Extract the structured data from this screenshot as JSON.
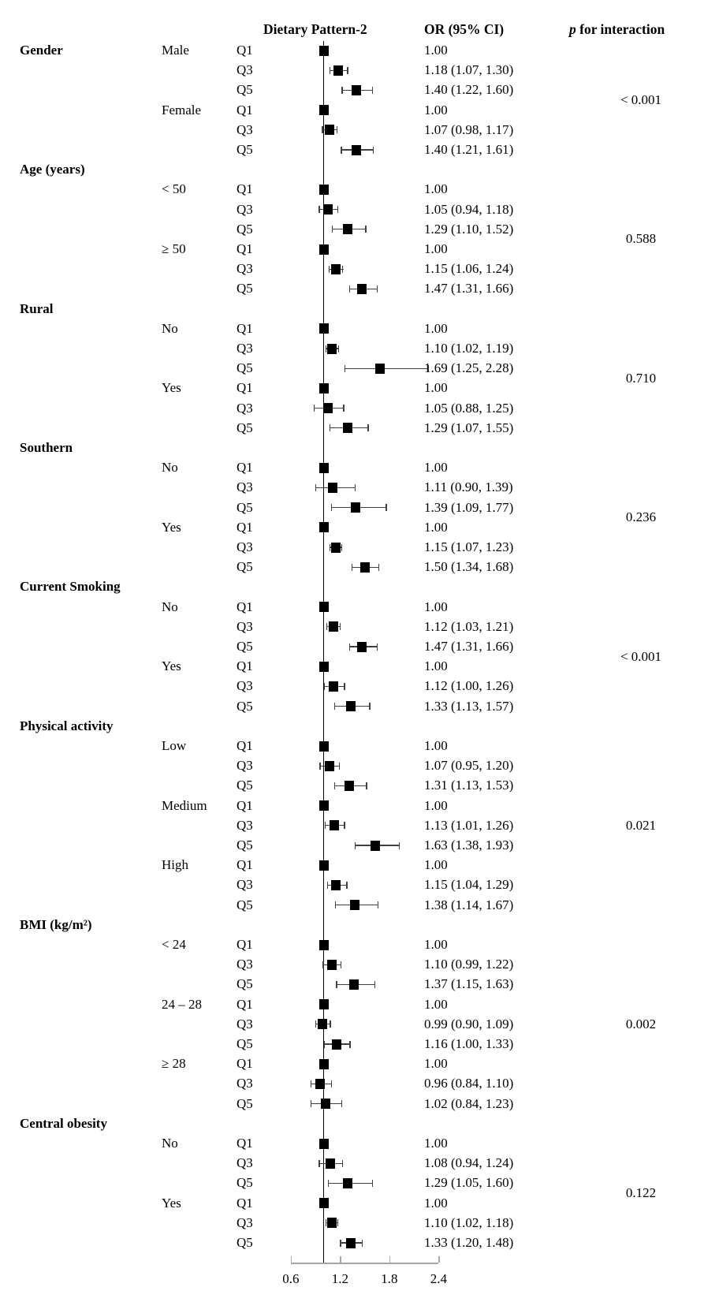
{
  "header": {
    "plot_col": "Dietary Pattern-2",
    "or_col": "OR (95% CI)",
    "p_col_italic": "p",
    "p_col_rest": " for interaction"
  },
  "axis": {
    "tick_labels": [
      "0.6",
      "1.2",
      "1.8",
      "2.4"
    ],
    "tick_values": [
      0.6,
      1.2,
      1.8,
      2.4
    ],
    "reference_value": 1.0
  },
  "colors": {
    "marker": "#000000",
    "ci_line": "#404040",
    "reference_line": "#000000",
    "axis_line": "#a6a6a6",
    "text": "#000000",
    "background": "#ffffff"
  },
  "chart_data": {
    "type": "scatter",
    "subtype": "forest-plot",
    "title": "Dietary Pattern-2",
    "xlabel": "",
    "xlim": [
      0.55,
      2.45
    ],
    "x_ticks": [
      0.6,
      1.2,
      1.8,
      2.4
    ],
    "legend": "none",
    "grid": false,
    "groups": [
      {
        "name": "Gender",
        "label_own_row": false,
        "p": "< 0.001",
        "subgroups": [
          {
            "name": "Male",
            "rows": [
              {
                "q": "Q1",
                "or": 1.0,
                "lo": null,
                "hi": null,
                "label": "1.00"
              },
              {
                "q": "Q3",
                "or": 1.18,
                "lo": 1.07,
                "hi": 1.3,
                "label": "1.18 (1.07, 1.30)"
              },
              {
                "q": "Q5",
                "or": 1.4,
                "lo": 1.22,
                "hi": 1.6,
                "label": "1.40 (1.22, 1.60)"
              }
            ]
          },
          {
            "name": "Female",
            "rows": [
              {
                "q": "Q1",
                "or": 1.0,
                "lo": null,
                "hi": null,
                "label": "1.00"
              },
              {
                "q": "Q3",
                "or": 1.07,
                "lo": 0.98,
                "hi": 1.17,
                "label": "1.07 (0.98, 1.17)"
              },
              {
                "q": "Q5",
                "or": 1.4,
                "lo": 1.21,
                "hi": 1.61,
                "label": "1.40 (1.21, 1.61)"
              }
            ]
          }
        ]
      },
      {
        "name": "Age (years)",
        "label_own_row": true,
        "p": "0.588",
        "subgroups": [
          {
            "name": "< 50",
            "rows": [
              {
                "q": "Q1",
                "or": 1.0,
                "lo": null,
                "hi": null,
                "label": "1.00"
              },
              {
                "q": "Q3",
                "or": 1.05,
                "lo": 0.94,
                "hi": 1.18,
                "label": "1.05 (0.94, 1.18)"
              },
              {
                "q": "Q5",
                "or": 1.29,
                "lo": 1.1,
                "hi": 1.52,
                "label": "1.29 (1.10, 1.52)"
              }
            ]
          },
          {
            "name": "≥ 50",
            "rows": [
              {
                "q": "Q1",
                "or": 1.0,
                "lo": null,
                "hi": null,
                "label": "1.00"
              },
              {
                "q": "Q3",
                "or": 1.15,
                "lo": 1.06,
                "hi": 1.24,
                "label": "1.15 (1.06, 1.24)"
              },
              {
                "q": "Q5",
                "or": 1.47,
                "lo": 1.31,
                "hi": 1.66,
                "label": "1.47 (1.31, 1.66)"
              }
            ]
          }
        ]
      },
      {
        "name": "Rural",
        "label_own_row": true,
        "p": "0.710",
        "subgroups": [
          {
            "name": "No",
            "rows": [
              {
                "q": "Q1",
                "or": 1.0,
                "lo": null,
                "hi": null,
                "label": "1.00"
              },
              {
                "q": "Q3",
                "or": 1.1,
                "lo": 1.02,
                "hi": 1.19,
                "label": "1.10 (1.02, 1.19)"
              },
              {
                "q": "Q5",
                "or": 1.69,
                "lo": 1.25,
                "hi": 2.28,
                "label": "1.69 (1.25, 2.28)"
              }
            ]
          },
          {
            "name": "Yes",
            "rows": [
              {
                "q": "Q1",
                "or": 1.0,
                "lo": null,
                "hi": null,
                "label": "1.00"
              },
              {
                "q": "Q3",
                "or": 1.05,
                "lo": 0.88,
                "hi": 1.25,
                "label": "1.05 (0.88, 1.25)"
              },
              {
                "q": "Q5",
                "or": 1.29,
                "lo": 1.07,
                "hi": 1.55,
                "label": "1.29 (1.07, 1.55)"
              }
            ]
          }
        ]
      },
      {
        "name": "Southern",
        "label_own_row": true,
        "p": "0.236",
        "subgroups": [
          {
            "name": "No",
            "rows": [
              {
                "q": "Q1",
                "or": 1.0,
                "lo": null,
                "hi": null,
                "label": "1.00"
              },
              {
                "q": "Q3",
                "or": 1.11,
                "lo": 0.9,
                "hi": 1.39,
                "label": "1.11 (0.90, 1.39)"
              },
              {
                "q": "Q5",
                "or": 1.39,
                "lo": 1.09,
                "hi": 1.77,
                "label": "1.39 (1.09, 1.77)"
              }
            ]
          },
          {
            "name": "Yes",
            "rows": [
              {
                "q": "Q1",
                "or": 1.0,
                "lo": null,
                "hi": null,
                "label": "1.00"
              },
              {
                "q": "Q3",
                "or": 1.15,
                "lo": 1.07,
                "hi": 1.23,
                "label": "1.15 (1.07, 1.23)"
              },
              {
                "q": "Q5",
                "or": 1.5,
                "lo": 1.34,
                "hi": 1.68,
                "label": "1.50 (1.34, 1.68)"
              }
            ]
          }
        ]
      },
      {
        "name": "Current Smoking",
        "label_own_row": true,
        "p": "< 0.001",
        "subgroups": [
          {
            "name": "No",
            "rows": [
              {
                "q": "Q1",
                "or": 1.0,
                "lo": null,
                "hi": null,
                "label": "1.00"
              },
              {
                "q": "Q3",
                "or": 1.12,
                "lo": 1.03,
                "hi": 1.21,
                "label": "1.12 (1.03, 1.21)"
              },
              {
                "q": "Q5",
                "or": 1.47,
                "lo": 1.31,
                "hi": 1.66,
                "label": "1.47 (1.31, 1.66)"
              }
            ]
          },
          {
            "name": "Yes",
            "rows": [
              {
                "q": "Q1",
                "or": 1.0,
                "lo": null,
                "hi": null,
                "label": "1.00"
              },
              {
                "q": "Q3",
                "or": 1.12,
                "lo": 1.0,
                "hi": 1.26,
                "label": "1.12 (1.00, 1.26)"
              },
              {
                "q": "Q5",
                "or": 1.33,
                "lo": 1.13,
                "hi": 1.57,
                "label": "1.33 (1.13, 1.57)"
              }
            ]
          }
        ]
      },
      {
        "name": "Physical activity",
        "label_own_row": true,
        "p": "0.021",
        "subgroups": [
          {
            "name": "Low",
            "rows": [
              {
                "q": "Q1",
                "or": 1.0,
                "lo": null,
                "hi": null,
                "label": "1.00"
              },
              {
                "q": "Q3",
                "or": 1.07,
                "lo": 0.95,
                "hi": 1.2,
                "label": "1.07 (0.95, 1.20)"
              },
              {
                "q": "Q5",
                "or": 1.31,
                "lo": 1.13,
                "hi": 1.53,
                "label": "1.31 (1.13, 1.53)"
              }
            ]
          },
          {
            "name": "Medium",
            "rows": [
              {
                "q": "Q1",
                "or": 1.0,
                "lo": null,
                "hi": null,
                "label": "1.00"
              },
              {
                "q": "Q3",
                "or": 1.13,
                "lo": 1.01,
                "hi": 1.26,
                "label": "1.13 (1.01, 1.26)"
              },
              {
                "q": "Q5",
                "or": 1.63,
                "lo": 1.38,
                "hi": 1.93,
                "label": "1.63 (1.38, 1.93)"
              }
            ]
          },
          {
            "name": "High",
            "rows": [
              {
                "q": "Q1",
                "or": 1.0,
                "lo": null,
                "hi": null,
                "label": "1.00"
              },
              {
                "q": "Q3",
                "or": 1.15,
                "lo": 1.04,
                "hi": 1.29,
                "label": "1.15 (1.04, 1.29)"
              },
              {
                "q": "Q5",
                "or": 1.38,
                "lo": 1.14,
                "hi": 1.67,
                "label": "1.38 (1.14, 1.67)"
              }
            ]
          }
        ]
      },
      {
        "name": "BMI (kg/m²)",
        "label_own_row": true,
        "p": "0.002",
        "subgroups": [
          {
            "name": "< 24",
            "rows": [
              {
                "q": "Q1",
                "or": 1.0,
                "lo": null,
                "hi": null,
                "label": "1.00"
              },
              {
                "q": "Q3",
                "or": 1.1,
                "lo": 0.99,
                "hi": 1.22,
                "label": "1.10 (0.99, 1.22)"
              },
              {
                "q": "Q5",
                "or": 1.37,
                "lo": 1.15,
                "hi": 1.63,
                "label": "1.37 (1.15, 1.63)"
              }
            ]
          },
          {
            "name": "24 – 28",
            "rows": [
              {
                "q": "Q1",
                "or": 1.0,
                "lo": null,
                "hi": null,
                "label": "1.00"
              },
              {
                "q": "Q3",
                "or": 0.99,
                "lo": 0.9,
                "hi": 1.09,
                "label": "0.99 (0.90, 1.09)"
              },
              {
                "q": "Q5",
                "or": 1.16,
                "lo": 1.0,
                "hi": 1.33,
                "label": "1.16 (1.00, 1.33)"
              }
            ]
          },
          {
            "name": "≥ 28",
            "rows": [
              {
                "q": "Q1",
                "or": 1.0,
                "lo": null,
                "hi": null,
                "label": "1.00"
              },
              {
                "q": "Q3",
                "or": 0.96,
                "lo": 0.84,
                "hi": 1.1,
                "label": "0.96 (0.84, 1.10)"
              },
              {
                "q": "Q5",
                "or": 1.02,
                "lo": 0.84,
                "hi": 1.23,
                "label": "1.02 (0.84, 1.23)"
              }
            ]
          }
        ]
      },
      {
        "name": "Central obesity",
        "label_own_row": true,
        "p": "0.122",
        "subgroups": [
          {
            "name": "No",
            "rows": [
              {
                "q": "Q1",
                "or": 1.0,
                "lo": null,
                "hi": null,
                "label": "1.00"
              },
              {
                "q": "Q3",
                "or": 1.08,
                "lo": 0.94,
                "hi": 1.24,
                "label": "1.08 (0.94, 1.24)"
              },
              {
                "q": "Q5",
                "or": 1.29,
                "lo": 1.05,
                "hi": 1.6,
                "label": "1.29 (1.05, 1.60)"
              }
            ]
          },
          {
            "name": "Yes",
            "rows": [
              {
                "q": "Q1",
                "or": 1.0,
                "lo": null,
                "hi": null,
                "label": "1.00"
              },
              {
                "q": "Q3",
                "or": 1.1,
                "lo": 1.02,
                "hi": 1.18,
                "label": "1.10 (1.02, 1.18)"
              },
              {
                "q": "Q5",
                "or": 1.33,
                "lo": 1.2,
                "hi": 1.48,
                "label": "1.33 (1.20, 1.48)"
              }
            ]
          }
        ]
      }
    ]
  }
}
